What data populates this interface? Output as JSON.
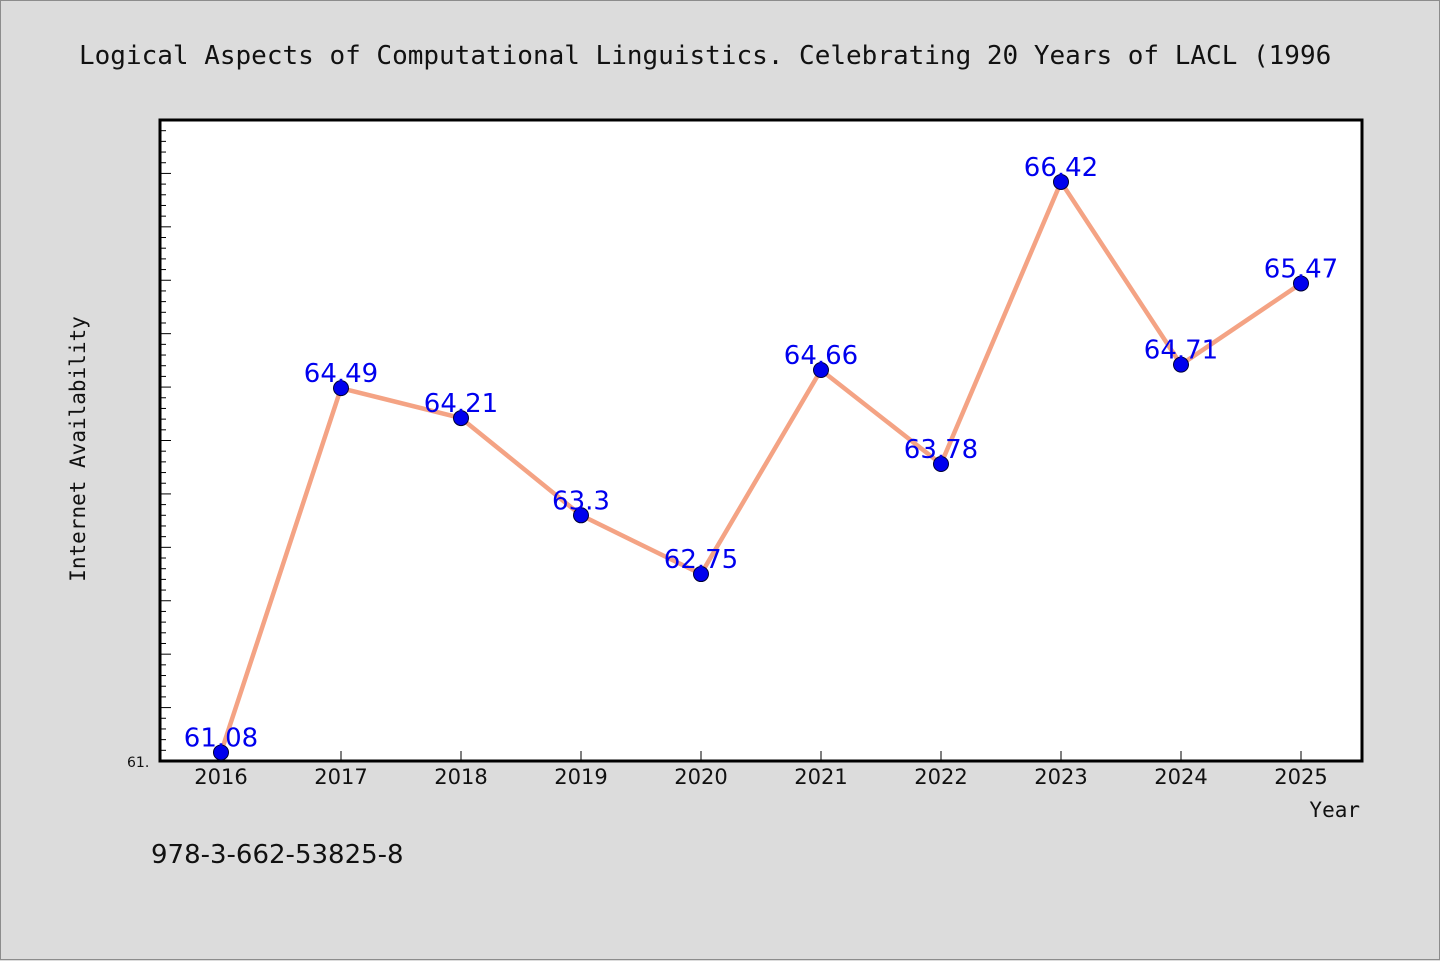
{
  "footer": {
    "isbn": "978-3-662-53825-8"
  },
  "colors": {
    "line": "#f4a384",
    "marker": "#0000ee",
    "label": "#0000ee",
    "background": "#dcdcdc",
    "plot": "#ffffff"
  },
  "chart_data": {
    "type": "line",
    "title": "Logical Aspects of Computational Linguistics. Celebrating 20 Years of LACL (1996",
    "xlabel": "Year",
    "ylabel": "Internet Availability",
    "categories": [
      "2016",
      "2017",
      "2018",
      "2019",
      "2020",
      "2021",
      "2022",
      "2023",
      "2024",
      "2025"
    ],
    "series": [
      {
        "values": [
          61.08,
          64.49,
          64.21,
          63.3,
          62.75,
          64.66,
          63.78,
          66.42,
          64.71,
          65.47
        ]
      }
    ],
    "data_labels": [
      "61.08",
      "64.49",
      "64.21",
      "63.3",
      "62.75",
      "64.66",
      "63.78",
      "66.42",
      "64.71",
      "65.47"
    ],
    "ylim": [
      61,
      67
    ],
    "ytick_labels": [
      "61."
    ],
    "grid": false,
    "legend": "none"
  }
}
